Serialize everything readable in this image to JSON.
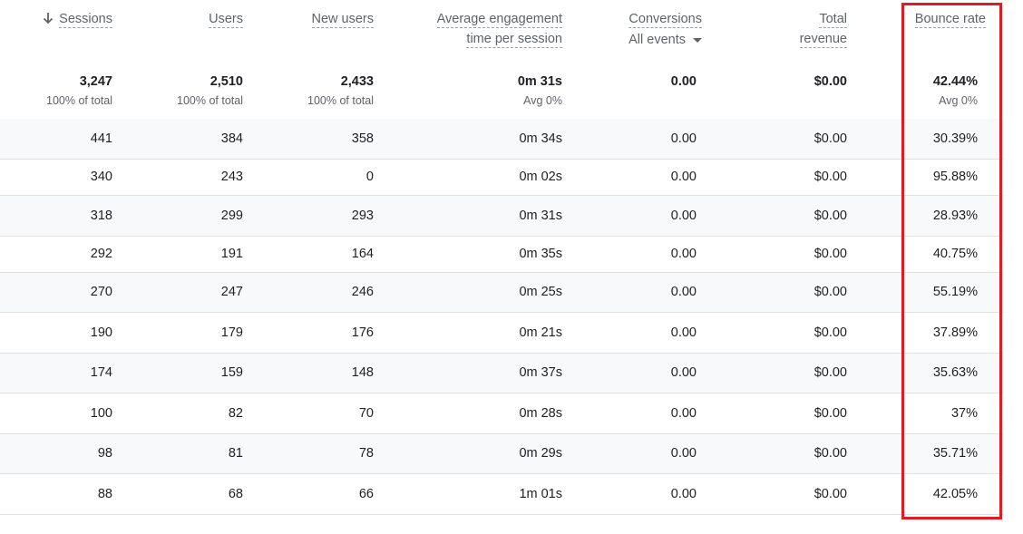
{
  "headers": {
    "sessions": "Sessions",
    "users": "Users",
    "new_users": "New users",
    "avg_engagement_line1": "Average engagement",
    "avg_engagement_line2": "time per session",
    "conversions": "Conversions",
    "conversions_filter": "All events",
    "total_revenue_line1": "Total",
    "total_revenue_line2": "revenue",
    "bounce_rate": "Bounce rate"
  },
  "totals": {
    "sessions": "3,247",
    "sessions_sub": "100% of total",
    "users": "2,510",
    "users_sub": "100% of total",
    "new_users": "2,433",
    "new_users_sub": "100% of total",
    "avg_engagement": "0m 31s",
    "avg_engagement_sub": "Avg 0%",
    "conversions": "0.00",
    "total_revenue": "$0.00",
    "bounce_rate": "42.44%",
    "bounce_rate_sub": "Avg 0%"
  },
  "rows": [
    {
      "sessions": "441",
      "users": "384",
      "new_users": "358",
      "avg_engagement": "0m 34s",
      "conversions": "0.00",
      "revenue": "$0.00",
      "bounce_rate": "30.39%"
    },
    {
      "sessions": "340",
      "users": "243",
      "new_users": "0",
      "avg_engagement": "0m 02s",
      "conversions": "0.00",
      "revenue": "$0.00",
      "bounce_rate": "95.88%"
    },
    {
      "sessions": "318",
      "users": "299",
      "new_users": "293",
      "avg_engagement": "0m 31s",
      "conversions": "0.00",
      "revenue": "$0.00",
      "bounce_rate": "28.93%"
    },
    {
      "sessions": "292",
      "users": "191",
      "new_users": "164",
      "avg_engagement": "0m 35s",
      "conversions": "0.00",
      "revenue": "$0.00",
      "bounce_rate": "40.75%"
    },
    {
      "sessions": "270",
      "users": "247",
      "new_users": "246",
      "avg_engagement": "0m 25s",
      "conversions": "0.00",
      "revenue": "$0.00",
      "bounce_rate": "55.19%"
    },
    {
      "sessions": "190",
      "users": "179",
      "new_users": "176",
      "avg_engagement": "0m 21s",
      "conversions": "0.00",
      "revenue": "$0.00",
      "bounce_rate": "37.89%"
    },
    {
      "sessions": "174",
      "users": "159",
      "new_users": "148",
      "avg_engagement": "0m 37s",
      "conversions": "0.00",
      "revenue": "$0.00",
      "bounce_rate": "35.63%"
    },
    {
      "sessions": "100",
      "users": "82",
      "new_users": "70",
      "avg_engagement": "0m 28s",
      "conversions": "0.00",
      "revenue": "$0.00",
      "bounce_rate": "37%"
    },
    {
      "sessions": "98",
      "users": "81",
      "new_users": "78",
      "avg_engagement": "0m 29s",
      "conversions": "0.00",
      "revenue": "$0.00",
      "bounce_rate": "35.71%"
    },
    {
      "sessions": "88",
      "users": "68",
      "new_users": "66",
      "avg_engagement": "1m 01s",
      "conversions": "0.00",
      "revenue": "$0.00",
      "bounce_rate": "42.05%"
    }
  ],
  "icons": {
    "sort": "arrow-down-icon",
    "dropdown": "caret-down-icon"
  },
  "colors": {
    "highlight_border": "#e01b24",
    "row_shade": "#f8f9fa",
    "divider": "#e0e0e0"
  }
}
